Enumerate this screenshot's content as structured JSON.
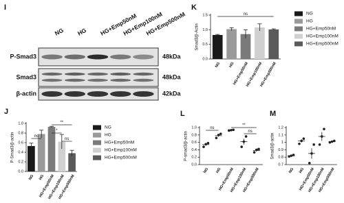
{
  "blot": {
    "label": "I",
    "lanes": [
      "NG",
      "HG",
      "HG+Emp50nM",
      "HG+Emp100nM",
      "HG+Emp500nM"
    ],
    "rows": [
      {
        "name": "P-Smad3",
        "size": "48kDa"
      },
      {
        "name": "Smad3",
        "size": "48kDa"
      },
      {
        "name": "β-actin",
        "size": "42kDa"
      }
    ]
  },
  "chart_data": [
    {
      "type": "bar",
      "label": "K",
      "y_label": "Smad3/β-Actin",
      "categories": [
        "NG",
        "HG",
        "HG+Emp50nM",
        "HG+Emp100nM",
        "HG+Emp500nM"
      ],
      "values": [
        0.82,
        1.02,
        0.85,
        1.08,
        1.01
      ],
      "errors": [
        0.02,
        0.05,
        0.15,
        0.12,
        0.02
      ],
      "colors": [
        "#1a1a1a",
        "#9a9a9a",
        "#7a7a7a",
        "#d0d0d0",
        "#5a5a5a"
      ],
      "ylim": [
        0,
        1.5
      ],
      "yticks": [
        {
          "value": 0,
          "label": "0.0"
        },
        {
          "value": 0.5,
          "label": "0.5"
        },
        {
          "value": 1,
          "label": "1.0"
        },
        {
          "value": 1.5,
          "label": "1.5"
        }
      ],
      "annotations": [
        "ns"
      ],
      "legend": "right"
    },
    {
      "type": "bar",
      "label": "J",
      "y_label": "P-Smad3/β-actin",
      "categories": [
        "NG",
        "HG",
        "HG+Emp50nM",
        "HG+Emp100nM",
        "HG+Emp500nM"
      ],
      "values": [
        0.53,
        0.78,
        0.93,
        0.62,
        0.38
      ],
      "errors": [
        0.06,
        0.08,
        0.01,
        0.15,
        0.06
      ],
      "colors": [
        "#1a1a1a",
        "#9a9a9a",
        "#7a7a7a",
        "#d0d0d0",
        "#5a5a5a"
      ],
      "ylim": [
        0,
        1
      ],
      "yticks": [
        {
          "value": 0,
          "label": "0.0"
        },
        {
          "value": 0.2,
          "label": "0.2"
        },
        {
          "value": 0.4,
          "label": "0.4"
        },
        {
          "value": 0.6,
          "label": "0.6"
        },
        {
          "value": 0.8,
          "label": "0.8"
        },
        {
          "value": 1,
          "label": "1.0"
        }
      ],
      "annotations": [
        "ns",
        "**",
        "*",
        "ns"
      ],
      "legend": "right"
    },
    {
      "type": "strip",
      "label": "L",
      "y_label": "P-smad3/β-actin",
      "categories": [
        "NG",
        "HG",
        "HG+Emp50nM",
        "HG+Emp100nM",
        "HG+Emp500nM"
      ],
      "points": [
        [
          0.48,
          0.55,
          0.58
        ],
        [
          0.72,
          0.8,
          0.83
        ],
        [
          0.92,
          0.93,
          0.94
        ],
        [
          0.48,
          0.62,
          0.76
        ],
        [
          0.33,
          0.4,
          0.42
        ]
      ],
      "means": [
        0.54,
        0.78,
        0.93,
        0.62,
        0.38
      ],
      "errors": [
        0.03,
        0.03,
        0.01,
        0.08,
        0.03
      ],
      "ylim": [
        0,
        1
      ],
      "yticks": [
        {
          "value": 0,
          "label": "0.0"
        },
        {
          "value": 0.2,
          "label": "0.2"
        },
        {
          "value": 0.4,
          "label": "0.4"
        },
        {
          "value": 0.6,
          "label": "0.6"
        },
        {
          "value": 0.8,
          "label": "0.8"
        },
        {
          "value": 1,
          "label": "1.0"
        }
      ],
      "annotations": [
        "ns",
        "**",
        "ns"
      ]
    },
    {
      "type": "strip",
      "label": "M",
      "y_label": "Smad3/β-actin",
      "categories": [
        "NG",
        "HG",
        "HG+Emp50nM",
        "HG+Emp100nM",
        "HG+Emp500nM"
      ],
      "points": [
        [
          0.81,
          0.82,
          0.83
        ],
        [
          0.98,
          1.02,
          1.05
        ],
        [
          0.72,
          0.85,
          0.97
        ],
        [
          0.97,
          1.08,
          1.18
        ],
        [
          1,
          1.01,
          1.02
        ]
      ],
      "means": [
        0.82,
        1.02,
        0.85,
        1.08,
        1.01
      ],
      "errors": [
        0.01,
        0.02,
        0.07,
        0.06,
        0.01
      ],
      "ylim": [
        0.7,
        1.2
      ],
      "yticks": [
        0.7,
        0.8,
        0.9,
        1,
        1.1,
        1.2
      ]
    }
  ]
}
